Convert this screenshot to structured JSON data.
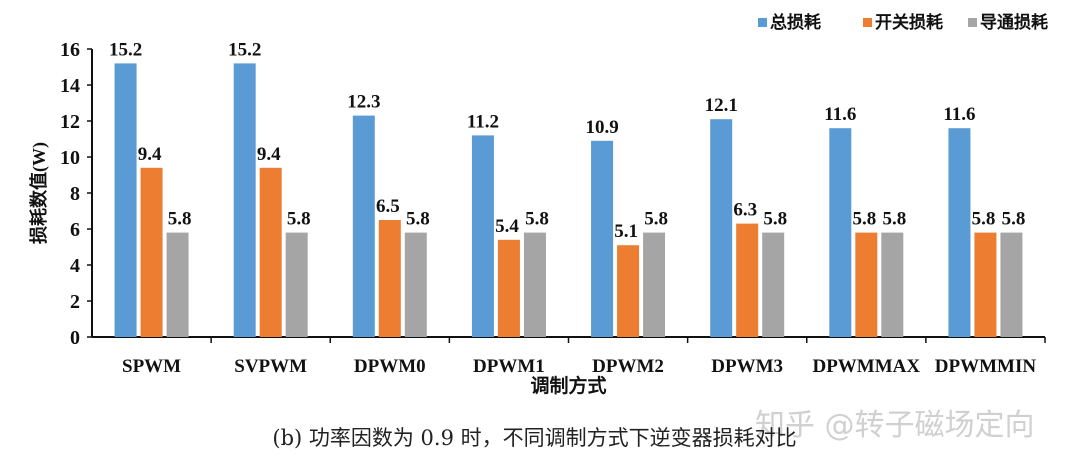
{
  "chart_data": {
    "type": "bar",
    "categories": [
      "SPWM",
      "SVPWM",
      "DPWM0",
      "DPWM1",
      "DPWM2",
      "DPWM3",
      "DPWMMAX",
      "DPWMMIN"
    ],
    "series": [
      {
        "name": "总损耗",
        "color": "#5B9BD5",
        "values": [
          15.2,
          15.2,
          12.3,
          11.2,
          10.9,
          12.1,
          11.6,
          11.6
        ]
      },
      {
        "name": "开关损耗",
        "color": "#ED7D31",
        "values": [
          9.4,
          9.4,
          6.5,
          5.4,
          5.1,
          6.3,
          5.8,
          5.8
        ]
      },
      {
        "name": "导通损耗",
        "color": "#A5A5A5",
        "values": [
          5.8,
          5.8,
          5.8,
          5.8,
          5.8,
          5.8,
          5.8,
          5.8
        ]
      }
    ],
    "xlabel": "调制方式",
    "ylabel": "损耗数值(W)",
    "ylim": [
      0,
      16
    ],
    "yticks": [
      0,
      2,
      4,
      6,
      8,
      10,
      12,
      14,
      16
    ],
    "grid": false,
    "legend": "top-right",
    "data_labels": true
  },
  "caption": "(b) 功率因数为 0.9 时，不同调制方式下逆变器损耗对比",
  "watermark": "知乎 @转子磁场定向"
}
